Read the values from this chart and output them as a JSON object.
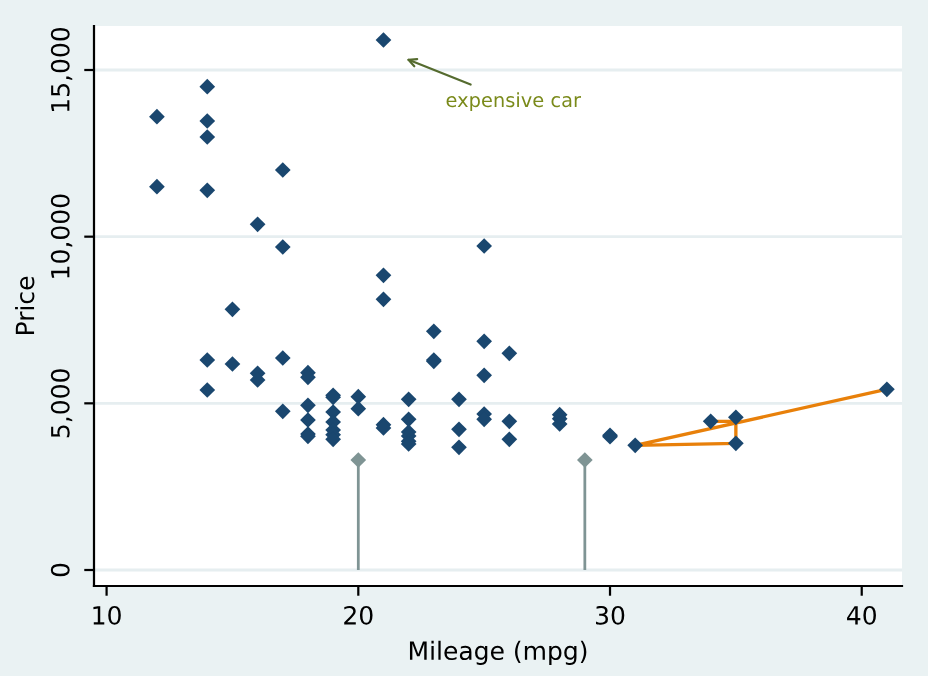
{
  "chart_data": {
    "type": "scatter",
    "xlabel": "Mileage (mpg)",
    "ylabel": "Price",
    "xlim": [
      9.5,
      41.6
    ],
    "ylim": [
      -480,
      16320
    ],
    "xticks": [
      10,
      20,
      30,
      40
    ],
    "yticks": [
      0,
      {
        "value": 5000,
        "label": "5,000"
      },
      {
        "value": 10000,
        "label": "10,000"
      },
      {
        "value": 15000,
        "label": "15,000"
      }
    ],
    "grid": "y",
    "marker": "diamond",
    "series": [
      {
        "color": "#1a476f",
        "x": [
          12,
          12,
          14,
          14,
          14,
          14,
          14,
          14,
          15,
          15,
          16,
          16,
          16,
          17,
          17,
          17,
          17,
          18,
          18,
          18,
          18,
          18,
          18,
          19,
          19,
          19,
          19,
          19,
          19,
          19,
          20,
          20,
          21,
          21,
          21,
          21,
          21,
          22,
          22,
          22,
          22,
          22,
          22,
          23,
          23,
          23,
          24,
          24,
          24,
          25,
          25,
          25,
          25,
          25,
          26,
          26,
          26,
          28,
          28,
          28,
          30,
          30,
          31,
          34,
          35,
          35,
          41
        ],
        "values": [
          13600,
          11500,
          14500,
          13470,
          12990,
          11390,
          6300,
          5400,
          7820,
          6180,
          10370,
          5900,
          5700,
          12000,
          9690,
          6360,
          4760,
          5920,
          5780,
          4940,
          4500,
          4080,
          4010,
          5240,
          5180,
          4740,
          4440,
          4200,
          4060,
          3920,
          5200,
          4840,
          15900,
          8840,
          8120,
          4360,
          4260,
          5120,
          4520,
          4140,
          4020,
          3860,
          3780,
          7160,
          6300,
          6260,
          5120,
          4220,
          3680,
          9720,
          6860,
          5840,
          4680,
          4520,
          6500,
          4460,
          3920,
          4660,
          4540,
          4380,
          4040,
          4000,
          3740,
          4460,
          4580,
          3800,
          5420
        ]
      },
      {
        "type": "lollipop",
        "color": "#7f9494",
        "x": [
          20,
          29
        ],
        "values": [
          3300,
          3300
        ]
      },
      {
        "type": "line",
        "color": "#e8800a",
        "marker": "none",
        "x": [
          34,
          35,
          35,
          31,
          41
        ],
        "values": [
          4460,
          4460,
          3800,
          3740,
          5420
        ]
      }
    ],
    "annotations": [
      "expensive car"
    ]
  }
}
